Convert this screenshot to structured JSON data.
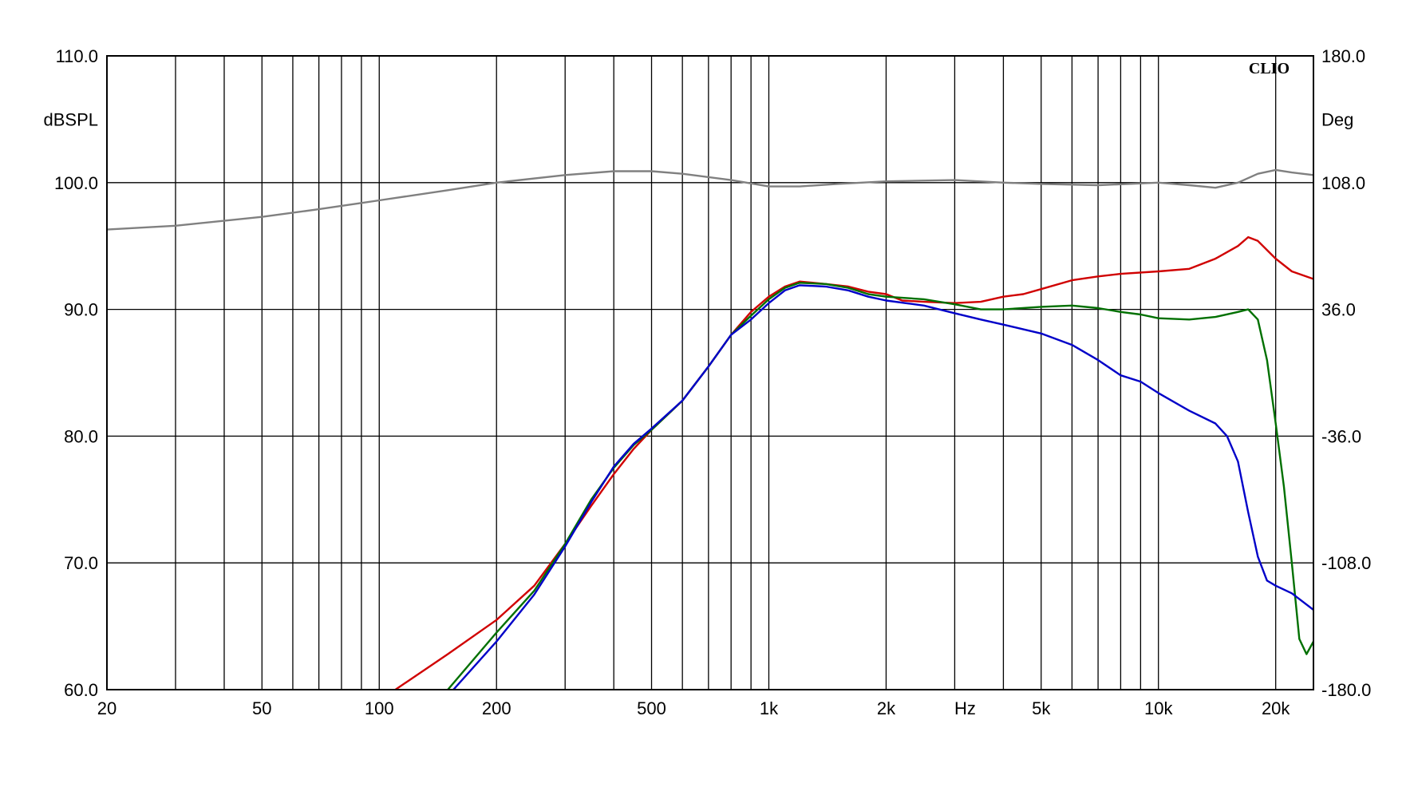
{
  "chart_data": {
    "type": "line",
    "brand": "CLIO",
    "x_unit_label": "Hz",
    "x_scale": "log",
    "xlim": [
      20,
      25000
    ],
    "y_left": {
      "label": "dBSPL",
      "range": [
        60,
        110
      ],
      "ticks": [
        "110.0",
        "100.0",
        "90.0",
        "80.0",
        "70.0",
        "60.0"
      ]
    },
    "y_right": {
      "label": "Deg",
      "range": [
        -180,
        180
      ],
      "ticks": [
        "180.0",
        "108.0",
        "36.0",
        "-36.0",
        "-108.0",
        "-180.0"
      ]
    },
    "x_ticks": [
      {
        "value": 20,
        "label": "20"
      },
      {
        "value": 50,
        "label": "50"
      },
      {
        "value": 100,
        "label": "100"
      },
      {
        "value": 200,
        "label": "200"
      },
      {
        "value": 500,
        "label": "500"
      },
      {
        "value": 1000,
        "label": "1k"
      },
      {
        "value": 2000,
        "label": "2k"
      },
      {
        "value": 5000,
        "label": "5k"
      },
      {
        "value": 10000,
        "label": "10k"
      },
      {
        "value": 20000,
        "label": "20k"
      }
    ],
    "grid": true,
    "series": [
      {
        "color": "#808080",
        "points": [
          [
            20,
            96.3
          ],
          [
            30,
            96.6
          ],
          [
            50,
            97.3
          ],
          [
            70,
            97.9
          ],
          [
            100,
            98.6
          ],
          [
            150,
            99.4
          ],
          [
            200,
            100.0
          ],
          [
            300,
            100.6
          ],
          [
            400,
            100.9
          ],
          [
            500,
            100.9
          ],
          [
            600,
            100.7
          ],
          [
            800,
            100.2
          ],
          [
            1000,
            99.7
          ],
          [
            1200,
            99.7
          ],
          [
            1500,
            99.9
          ],
          [
            2000,
            100.1
          ],
          [
            3000,
            100.2
          ],
          [
            4000,
            100.0
          ],
          [
            5000,
            99.9
          ],
          [
            7000,
            99.8
          ],
          [
            10000,
            100.0
          ],
          [
            12000,
            99.8
          ],
          [
            14000,
            99.6
          ],
          [
            16000,
            100.0
          ],
          [
            18000,
            100.7
          ],
          [
            20000,
            101.0
          ],
          [
            22000,
            100.8
          ],
          [
            25000,
            100.6
          ]
        ]
      },
      {
        "color": "#d00000",
        "points": [
          [
            110,
            60.0
          ],
          [
            150,
            62.8
          ],
          [
            200,
            65.5
          ],
          [
            250,
            68.2
          ],
          [
            300,
            71.5
          ],
          [
            350,
            74.5
          ],
          [
            400,
            77.0
          ],
          [
            450,
            79.0
          ],
          [
            500,
            80.5
          ],
          [
            600,
            82.8
          ],
          [
            700,
            85.5
          ],
          [
            800,
            88.0
          ],
          [
            900,
            89.8
          ],
          [
            1000,
            91.0
          ],
          [
            1100,
            91.8
          ],
          [
            1200,
            92.2
          ],
          [
            1400,
            92.0
          ],
          [
            1600,
            91.8
          ],
          [
            1800,
            91.4
          ],
          [
            2000,
            91.2
          ],
          [
            2200,
            90.7
          ],
          [
            2500,
            90.6
          ],
          [
            3000,
            90.5
          ],
          [
            3500,
            90.6
          ],
          [
            4000,
            91.0
          ],
          [
            4500,
            91.2
          ],
          [
            5000,
            91.6
          ],
          [
            6000,
            92.3
          ],
          [
            7000,
            92.6
          ],
          [
            8000,
            92.8
          ],
          [
            10000,
            93.0
          ],
          [
            12000,
            93.2
          ],
          [
            14000,
            94.0
          ],
          [
            16000,
            95.0
          ],
          [
            17000,
            95.7
          ],
          [
            18000,
            95.4
          ],
          [
            20000,
            94.0
          ],
          [
            22000,
            93.0
          ],
          [
            25000,
            92.4
          ]
        ]
      },
      {
        "color": "#007000",
        "points": [
          [
            150,
            60.0
          ],
          [
            200,
            64.5
          ],
          [
            250,
            67.8
          ],
          [
            300,
            71.5
          ],
          [
            350,
            75.0
          ],
          [
            400,
            77.5
          ],
          [
            450,
            79.3
          ],
          [
            500,
            80.5
          ],
          [
            600,
            82.8
          ],
          [
            700,
            85.5
          ],
          [
            800,
            88.0
          ],
          [
            900,
            89.5
          ],
          [
            1000,
            90.8
          ],
          [
            1100,
            91.7
          ],
          [
            1200,
            92.1
          ],
          [
            1400,
            92.0
          ],
          [
            1600,
            91.7
          ],
          [
            1800,
            91.2
          ],
          [
            2000,
            91.0
          ],
          [
            2500,
            90.8
          ],
          [
            3000,
            90.4
          ],
          [
            3500,
            90.0
          ],
          [
            4000,
            90.0
          ],
          [
            5000,
            90.2
          ],
          [
            6000,
            90.3
          ],
          [
            7000,
            90.1
          ],
          [
            8000,
            89.8
          ],
          [
            9000,
            89.6
          ],
          [
            10000,
            89.3
          ],
          [
            12000,
            89.2
          ],
          [
            14000,
            89.4
          ],
          [
            16000,
            89.8
          ],
          [
            17000,
            90.0
          ],
          [
            18000,
            89.2
          ],
          [
            19000,
            86.0
          ],
          [
            20000,
            81.0
          ],
          [
            21000,
            76.0
          ],
          [
            22000,
            70.0
          ],
          [
            23000,
            64.0
          ],
          [
            24000,
            62.8
          ],
          [
            25000,
            63.8
          ]
        ]
      },
      {
        "color": "#0000c8",
        "points": [
          [
            155,
            60.0
          ],
          [
            200,
            63.8
          ],
          [
            250,
            67.5
          ],
          [
            300,
            71.3
          ],
          [
            350,
            74.8
          ],
          [
            400,
            77.6
          ],
          [
            450,
            79.4
          ],
          [
            500,
            80.6
          ],
          [
            600,
            82.8
          ],
          [
            700,
            85.5
          ],
          [
            800,
            88.0
          ],
          [
            900,
            89.2
          ],
          [
            1000,
            90.5
          ],
          [
            1100,
            91.5
          ],
          [
            1200,
            91.9
          ],
          [
            1400,
            91.8
          ],
          [
            1600,
            91.5
          ],
          [
            1800,
            91.0
          ],
          [
            2000,
            90.7
          ],
          [
            2500,
            90.3
          ],
          [
            3000,
            89.7
          ],
          [
            3500,
            89.2
          ],
          [
            4000,
            88.8
          ],
          [
            5000,
            88.1
          ],
          [
            6000,
            87.2
          ],
          [
            7000,
            86.0
          ],
          [
            8000,
            84.8
          ],
          [
            9000,
            84.3
          ],
          [
            10000,
            83.4
          ],
          [
            12000,
            82.0
          ],
          [
            14000,
            81.0
          ],
          [
            15000,
            80.0
          ],
          [
            16000,
            78.0
          ],
          [
            17000,
            74.0
          ],
          [
            18000,
            70.5
          ],
          [
            19000,
            68.6
          ],
          [
            20000,
            68.2
          ],
          [
            22000,
            67.6
          ],
          [
            25000,
            66.3
          ]
        ]
      }
    ]
  }
}
